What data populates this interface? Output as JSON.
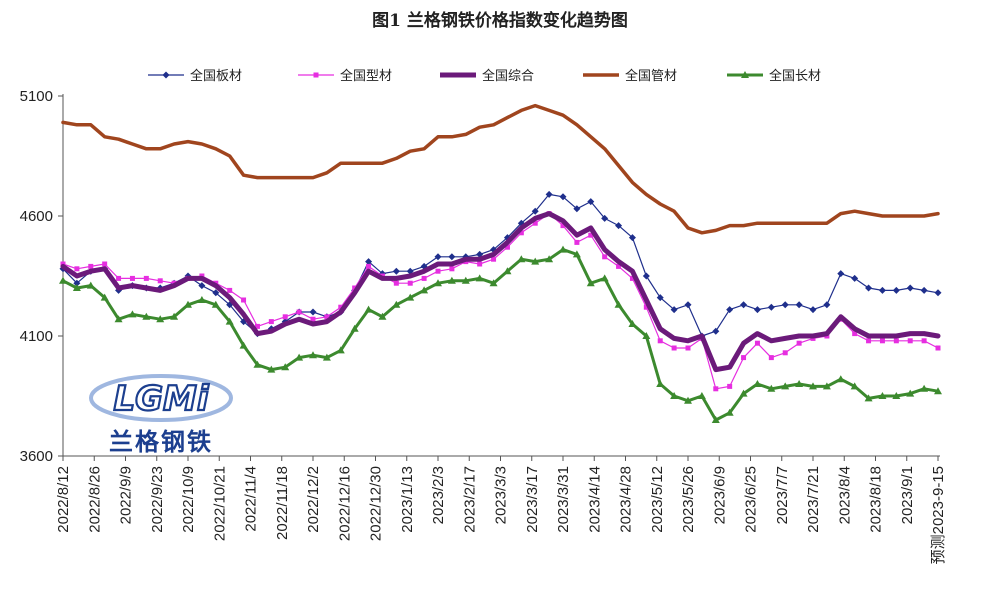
{
  "chart_data": {
    "type": "line",
    "title": "图1 兰格钢铁价格指数变化趋势图",
    "ylim": [
      3600,
      5100
    ],
    "yticks": [
      3600,
      4100,
      4600,
      5100
    ],
    "xtick_labels": [
      "2022/8/12",
      "2022/8/26",
      "2022/9/9",
      "2022/9/23",
      "2022/10/9",
      "2022/10/21",
      "2022/11/4",
      "2022/11/18",
      "2022/12/2",
      "2022/12/16",
      "2022/12/30",
      "2023/1/13",
      "2023/2/3",
      "2023/2/17",
      "2023/3/3",
      "2023/3/17",
      "2023/3/31",
      "2023/4/14",
      "2023/4/28",
      "2023/5/12",
      "2023/5/26",
      "2023/6/9",
      "2023/6/25",
      "2023/7/7",
      "2023/7/21",
      "2023/8/4",
      "2023/8/18",
      "2023/9/1",
      "预测2023-9-15"
    ],
    "legend_position": "top",
    "grid": false,
    "series": [
      {
        "name": "全国板材",
        "color": "#1f2f8c",
        "marker": "diamond",
        "width": 1.2,
        "values": [
          4380,
          4320,
          4370,
          4380,
          4290,
          4310,
          4300,
          4300,
          4320,
          4350,
          4310,
          4280,
          4230,
          4160,
          4110,
          4130,
          4160,
          4200,
          4200,
          4180,
          4200,
          4290,
          4410,
          4360,
          4370,
          4370,
          4390,
          4430,
          4430,
          4430,
          4440,
          4460,
          4510,
          4570,
          4620,
          4690,
          4680,
          4630,
          4660,
          4590,
          4560,
          4510,
          4350,
          4260,
          4210,
          4230,
          4100,
          4120,
          4210,
          4230,
          4210,
          4220,
          4230,
          4230,
          4210,
          4230,
          4360,
          4340,
          4300,
          4290,
          4290,
          4300,
          4290,
          4280
        ]
      },
      {
        "name": "全国型材",
        "color": "#e62ee0",
        "marker": "square",
        "width": 1.2,
        "values": [
          4400,
          4380,
          4390,
          4400,
          4340,
          4340,
          4340,
          4330,
          4320,
          4340,
          4350,
          4320,
          4290,
          4250,
          4140,
          4160,
          4180,
          4200,
          4170,
          4180,
          4220,
          4300,
          4390,
          4350,
          4320,
          4320,
          4340,
          4370,
          4380,
          4410,
          4400,
          4420,
          4470,
          4530,
          4570,
          4610,
          4560,
          4490,
          4520,
          4430,
          4390,
          4340,
          4220,
          4080,
          4050,
          4050,
          4090,
          3880,
          3890,
          4010,
          4070,
          4010,
          4030,
          4070,
          4090,
          4100,
          4170,
          4110,
          4080,
          4080,
          4080,
          4080,
          4080,
          4050
        ]
      },
      {
        "name": "全国综合",
        "color": "#6b1a7a",
        "marker": "none",
        "width": 5,
        "values": [
          4390,
          4350,
          4370,
          4380,
          4300,
          4310,
          4300,
          4290,
          4310,
          4340,
          4340,
          4310,
          4260,
          4190,
          4110,
          4120,
          4150,
          4170,
          4150,
          4160,
          4200,
          4280,
          4370,
          4340,
          4340,
          4350,
          4370,
          4400,
          4400,
          4420,
          4420,
          4440,
          4490,
          4550,
          4590,
          4610,
          4580,
          4520,
          4550,
          4460,
          4410,
          4370,
          4250,
          4130,
          4090,
          4080,
          4100,
          3960,
          3970,
          4070,
          4110,
          4080,
          4090,
          4100,
          4100,
          4110,
          4180,
          4130,
          4100,
          4100,
          4100,
          4110,
          4110,
          4100
        ]
      },
      {
        "name": "全国管材",
        "color": "#a0451e",
        "marker": "none",
        "width": 3.5,
        "values": [
          4990,
          4980,
          4980,
          4930,
          4920,
          4900,
          4880,
          4880,
          4900,
          4910,
          4900,
          4880,
          4850,
          4770,
          4760,
          4760,
          4760,
          4760,
          4760,
          4780,
          4820,
          4820,
          4820,
          4820,
          4840,
          4870,
          4880,
          4930,
          4930,
          4940,
          4970,
          4980,
          5010,
          5040,
          5060,
          5040,
          5020,
          4980,
          4930,
          4880,
          4810,
          4740,
          4690,
          4650,
          4620,
          4550,
          4530,
          4540,
          4560,
          4560,
          4570,
          4570,
          4570,
          4570,
          4570,
          4570,
          4610,
          4620,
          4610,
          4600,
          4600,
          4600,
          4600,
          4610
        ]
      },
      {
        "name": "全国长材",
        "color": "#3c8a2e",
        "marker": "triangle",
        "width": 3,
        "values": [
          4330,
          4300,
          4310,
          4260,
          4170,
          4190,
          4180,
          4170,
          4180,
          4230,
          4250,
          4230,
          4160,
          4060,
          3980,
          3960,
          3970,
          4010,
          4020,
          4010,
          4040,
          4130,
          4210,
          4180,
          4230,
          4260,
          4290,
          4320,
          4330,
          4330,
          4340,
          4320,
          4370,
          4420,
          4410,
          4420,
          4460,
          4440,
          4320,
          4340,
          4230,
          4150,
          4100,
          3900,
          3850,
          3830,
          3850,
          3750,
          3780,
          3860,
          3900,
          3880,
          3890,
          3900,
          3890,
          3890,
          3920,
          3890,
          3840,
          3850,
          3850,
          3860,
          3880,
          3870
        ]
      }
    ]
  },
  "logo": {
    "mark": "LGMi",
    "subtitle": "兰格钢铁"
  }
}
